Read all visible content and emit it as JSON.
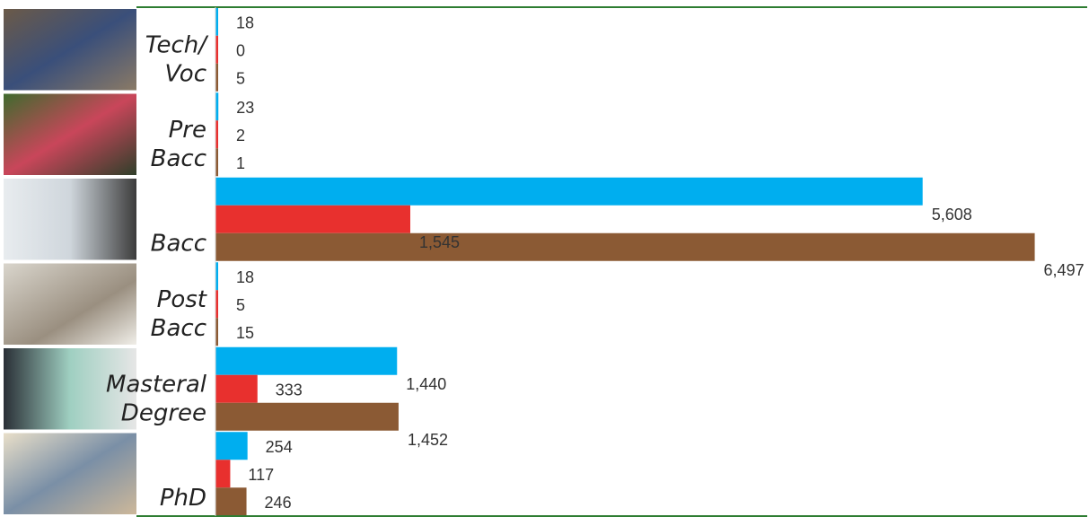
{
  "colors": {
    "series_1": "#00AEEF",
    "series_2": "#E8302E",
    "series_3": "#8B5A34",
    "border": "#2E7D32"
  },
  "chart_data": {
    "type": "bar",
    "orientation": "horizontal",
    "grouped": true,
    "categories": [
      [
        "Tech/",
        "Voc"
      ],
      [
        "Pre",
        "Bacc"
      ],
      [
        "Bacc"
      ],
      [
        "Post",
        "Bacc"
      ],
      [
        "Masteral",
        "Degree"
      ],
      [
        "PhD"
      ]
    ],
    "category_images": [
      "workshop-photo",
      "garden-photo",
      "graduates-photo",
      "microscope-photo",
      "office-photo",
      "classroom-photo"
    ],
    "series": [
      {
        "color": "#00AEEF",
        "values": [
          18,
          23,
          5608,
          18,
          1440,
          254
        ],
        "labels": [
          "18",
          "23",
          "5,608",
          "18",
          "1,440",
          "254"
        ]
      },
      {
        "color": "#E8302E",
        "values": [
          0,
          2,
          1545,
          5,
          333,
          117
        ],
        "labels": [
          "0",
          "2",
          "1,545",
          "5",
          "333",
          "117"
        ]
      },
      {
        "color": "#8B5A34",
        "values": [
          5,
          1,
          6497,
          15,
          1452,
          246
        ],
        "labels": [
          "5",
          "1",
          "6,497",
          "15",
          "1,452",
          "246"
        ]
      }
    ],
    "xlim": [
      0,
      6550
    ],
    "axis_visible": false,
    "grid": false,
    "legend": "none",
    "title": "",
    "xlabel": "",
    "ylabel": ""
  }
}
